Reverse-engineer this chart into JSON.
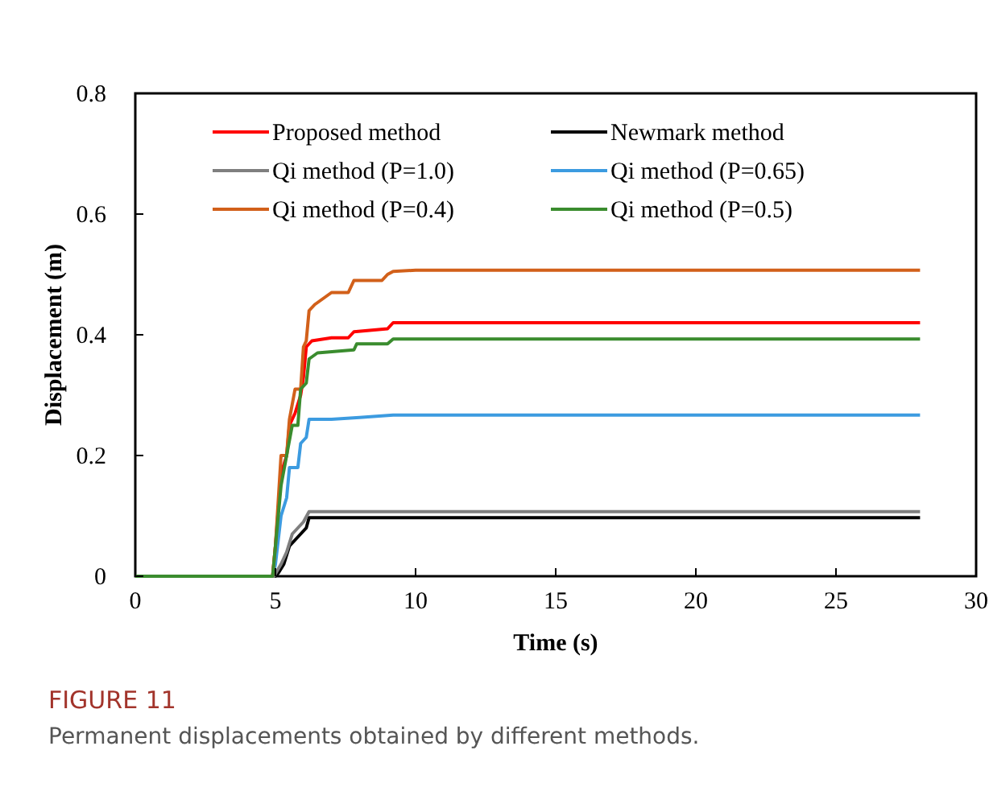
{
  "chart_data": {
    "type": "line",
    "xlabel": "Time (s)",
    "ylabel": "Displacement (m)",
    "xlim": [
      0,
      30
    ],
    "xticks": [
      0,
      5,
      10,
      15,
      20,
      25,
      30
    ],
    "ylim": [
      0,
      0.8
    ],
    "yticks": [
      0,
      0.2,
      0.4,
      0.6,
      0.8
    ],
    "legend": "top",
    "grid": false,
    "annotations": [
      "FIGURE 11",
      "Permanent displacements obtained by different methods."
    ],
    "series": [
      {
        "name": "Proposed method",
        "color": "#ff0000",
        "x": [
          0,
          4.9,
          5.0,
          5.2,
          5.4,
          5.5,
          5.7,
          5.9,
          6.0,
          6.1,
          6.3,
          7.0,
          7.6,
          7.8,
          9.0,
          9.2,
          28
        ],
        "values": [
          0,
          0,
          0.05,
          0.17,
          0.2,
          0.25,
          0.27,
          0.3,
          0.33,
          0.38,
          0.39,
          0.395,
          0.395,
          0.405,
          0.41,
          0.42,
          0.42
        ]
      },
      {
        "name": "Newmark method",
        "color": "#000000",
        "x": [
          0,
          5.0,
          5.1,
          5.3,
          5.5,
          5.7,
          5.9,
          6.1,
          6.2,
          28
        ],
        "values": [
          0,
          0,
          0.005,
          0.02,
          0.05,
          0.06,
          0.07,
          0.08,
          0.097,
          0.097
        ]
      },
      {
        "name": "Qi method (P=1.0)",
        "color": "#7f7f7f",
        "x": [
          0,
          4.95,
          5.2,
          5.4,
          5.6,
          5.8,
          6.0,
          6.2,
          28
        ],
        "values": [
          0,
          0,
          0.02,
          0.04,
          0.07,
          0.08,
          0.09,
          0.107,
          0.107
        ]
      },
      {
        "name": "Qi method (P=0.65)",
        "color": "#3c9be0",
        "x": [
          0,
          4.9,
          5.0,
          5.2,
          5.4,
          5.5,
          5.8,
          5.9,
          6.1,
          6.2,
          7.0,
          8.0,
          9.2,
          28
        ],
        "values": [
          0,
          0,
          0.02,
          0.1,
          0.13,
          0.18,
          0.18,
          0.22,
          0.23,
          0.26,
          0.26,
          0.263,
          0.267,
          0.267
        ]
      },
      {
        "name": "Qi method (P=0.4)",
        "color": "#d2601a",
        "x": [
          0,
          4.9,
          5.0,
          5.2,
          5.4,
          5.5,
          5.7,
          5.9,
          6.0,
          6.1,
          6.2,
          6.4,
          6.7,
          7.0,
          7.6,
          7.8,
          8.8,
          9.0,
          9.2,
          10,
          28
        ],
        "values": [
          0,
          0,
          0.05,
          0.2,
          0.2,
          0.26,
          0.31,
          0.31,
          0.38,
          0.39,
          0.44,
          0.45,
          0.46,
          0.47,
          0.47,
          0.49,
          0.49,
          0.5,
          0.505,
          0.507,
          0.507
        ]
      },
      {
        "name": "Qi method (P=0.5)",
        "color": "#3a8c2e",
        "x": [
          0,
          4.9,
          5.0,
          5.2,
          5.4,
          5.6,
          5.8,
          5.9,
          6.1,
          6.2,
          6.5,
          7.8,
          7.9,
          9.0,
          9.2,
          28
        ],
        "values": [
          0,
          0,
          0.05,
          0.15,
          0.2,
          0.25,
          0.25,
          0.31,
          0.32,
          0.36,
          0.37,
          0.375,
          0.385,
          0.385,
          0.393,
          0.393
        ]
      }
    ]
  }
}
